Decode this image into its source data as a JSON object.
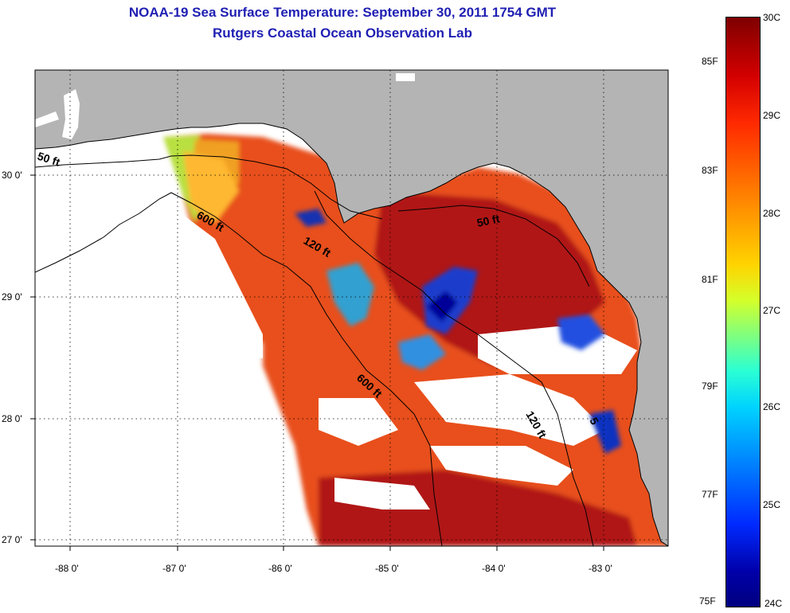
{
  "title_line1": "NOAA-19 Sea Surface Temperature:  September 30, 2011 1754 GMT",
  "title_line2": "Rutgers Coastal Ocean Observation Lab",
  "lat_labels": [
    "30 0'",
    "29 0'",
    "28 0'",
    "27 0'"
  ],
  "lon_labels": [
    "-88 0'",
    "-87 0'",
    "-86 0'",
    "-85 0'",
    "-84 0'",
    "-83 0'"
  ],
  "isobaths": [
    "50 ft",
    "600 ft",
    "120 ft",
    "50 ft",
    "600 ft",
    "120 ft",
    "5"
  ],
  "colorbar": {
    "fahrenheit": [
      "85F",
      "83F",
      "81F",
      "79F",
      "77F",
      "75F"
    ],
    "celsius": [
      "30C",
      "29C",
      "28C",
      "27C",
      "26C",
      "25C",
      "24C"
    ]
  },
  "colors": {
    "title": "#1f1fb3",
    "land": "#b4b4b4",
    "no_data": "#ffffff"
  }
}
